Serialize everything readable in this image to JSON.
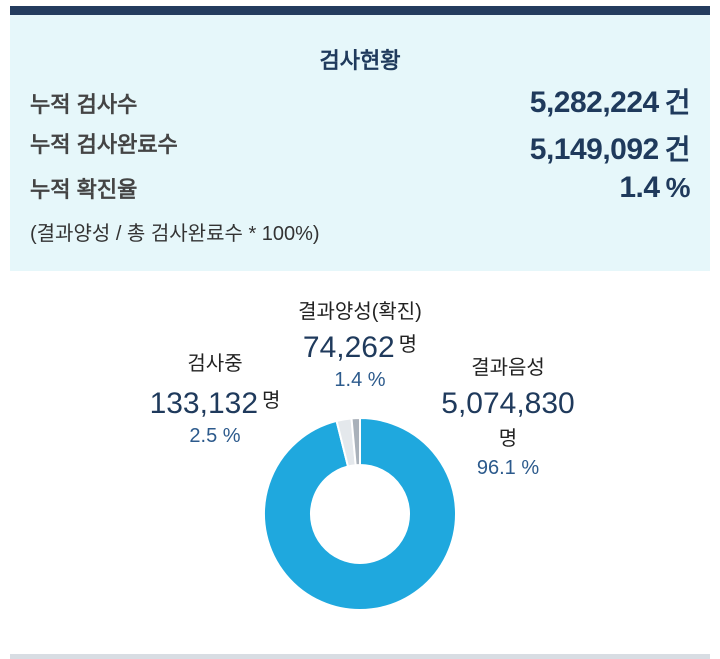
{
  "summary": {
    "title": "검사현황",
    "rows": [
      {
        "label": "누적 검사수",
        "value": "5,282,224",
        "unit": "건"
      },
      {
        "label": "누적 검사완료수",
        "value": "5,149,092",
        "unit": "건"
      },
      {
        "label": "누적 확진율",
        "value": "1.4",
        "unit": "%"
      }
    ],
    "note": "(결과양성 / 총 검사완료수 * 100%)"
  },
  "chart_data": {
    "type": "pie",
    "series": [
      {
        "name": "결과음성",
        "value": 5074830,
        "value_text": "5,074,830",
        "unit": "명",
        "percent_text": "96.1 %",
        "color": "#1fa8de"
      },
      {
        "name": "검사중",
        "value": 133132,
        "value_text": "133,132",
        "unit": "명",
        "percent_text": "2.5 %",
        "color": "#e4e8ec"
      },
      {
        "name": "결과양성(확진)",
        "value": 74262,
        "value_text": "74,262",
        "unit": "명",
        "percent_text": "1.4 %",
        "color": "#a9b1ba"
      }
    ]
  }
}
